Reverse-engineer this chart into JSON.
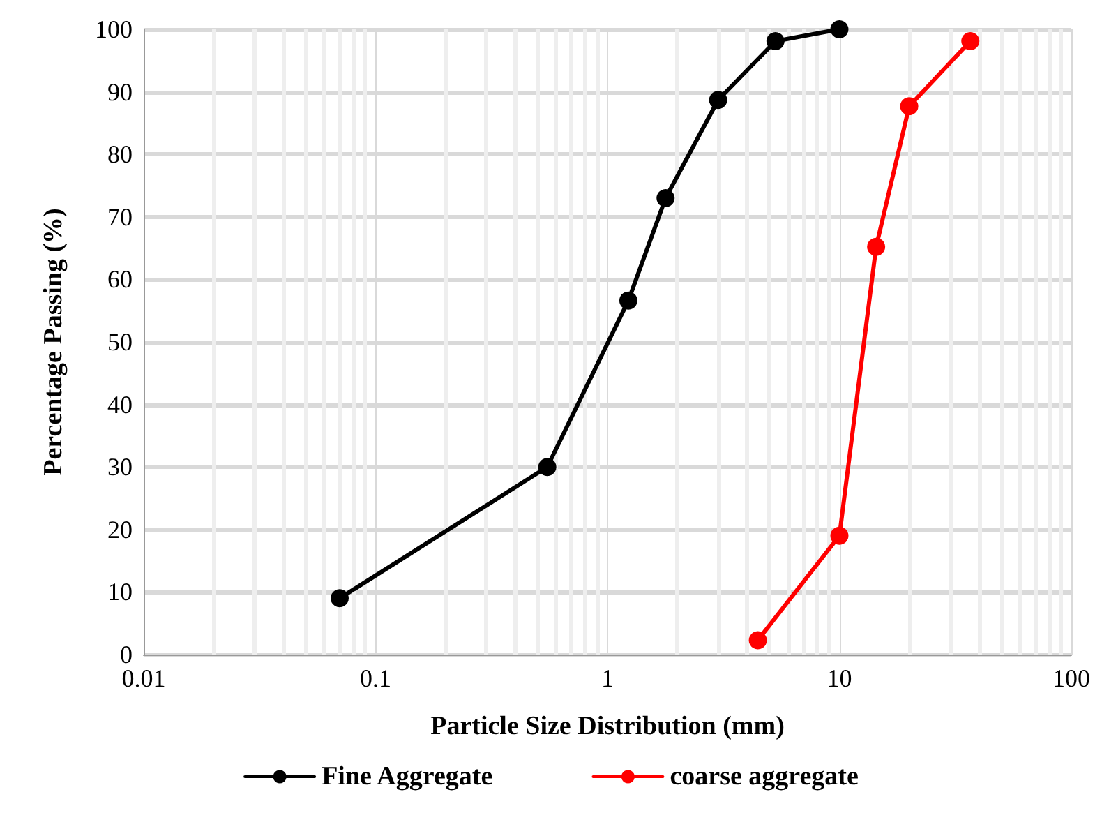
{
  "chart_data": {
    "type": "line",
    "xlabel": "Particle Size Distribution (mm)",
    "ylabel": "Percentage Passing (%)",
    "log": "x",
    "xlim": [
      0.01,
      100
    ],
    "xticks": [
      0.01,
      0.1,
      1,
      10,
      100
    ],
    "ylim": [
      0,
      100
    ],
    "yticks": [
      0,
      10,
      20,
      30,
      40,
      50,
      60,
      70,
      80,
      90,
      100
    ],
    "grid": true,
    "legend": "bottom",
    "marker": "circle",
    "line_style": "solid",
    "series": [
      {
        "name": "Fine Aggregate",
        "color": "#000000",
        "x": [
          0.07,
          0.55,
          1.23,
          1.78,
          3,
          5.3,
          10
        ],
        "values": [
          9,
          30,
          56.6,
          73,
          88.7,
          98.1,
          100
        ]
      },
      {
        "name": "coarse aggregate",
        "color": "#ff0000",
        "x": [
          4.45,
          10,
          14.4,
          20,
          36.7
        ],
        "values": [
          2.3,
          19,
          65.2,
          87.7,
          98.1
        ]
      }
    ]
  }
}
